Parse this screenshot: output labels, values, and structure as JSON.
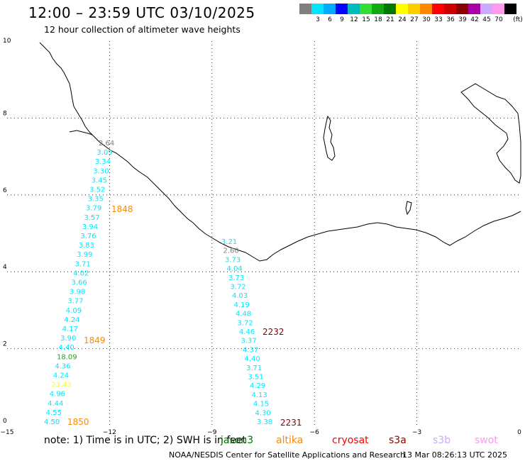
{
  "header": {
    "title": "12:00 – 23:59 UTC 03/10/2025",
    "subtitle": "12 hour collection of altimeter wave heights"
  },
  "color_scale": {
    "unit": "(ft)",
    "bins": [
      {
        "label": "",
        "color": "#808080"
      },
      {
        "label": "3",
        "color": "#00e5ff"
      },
      {
        "label": "6",
        "color": "#00aaff"
      },
      {
        "label": "9",
        "color": "#0000ff"
      },
      {
        "label": "12",
        "color": "#00bbbb"
      },
      {
        "label": "15",
        "color": "#33dd33"
      },
      {
        "label": "18",
        "color": "#11aa11"
      },
      {
        "label": "21",
        "color": "#007700"
      },
      {
        "label": "24",
        "color": "#ffff00"
      },
      {
        "label": "27",
        "color": "#ffcc00"
      },
      {
        "label": "30",
        "color": "#ff8800"
      },
      {
        "label": "33",
        "color": "#ff0000"
      },
      {
        "label": "36",
        "color": "#cc0000"
      },
      {
        "label": "39",
        "color": "#880000"
      },
      {
        "label": "42",
        "color": "#aa00aa"
      },
      {
        "label": "45",
        "color": "#ccaaff"
      },
      {
        "label": "70",
        "color": "#ff99ee"
      },
      {
        "label": "",
        "color": "#000000"
      }
    ]
  },
  "map": {
    "x_ticks": [
      "−15",
      "−12",
      "−9",
      "−6",
      "−3",
      "0"
    ],
    "y_ticks": [
      "0",
      "2",
      "4",
      "6",
      "8",
      "10"
    ],
    "track1": {
      "values": [
        "2.64",
        "3.09",
        "3.34",
        "3.30",
        "3.45",
        "3.52",
        "3.35",
        "3.79",
        "3.57",
        "3.94",
        "3.76",
        "3.83",
        "3.99",
        "3.71",
        "4.02",
        "3.66",
        "3.98",
        "3.77",
        "4.09",
        "4.24",
        "4.17",
        "3.90",
        "4.40",
        "18.09",
        "4.36",
        "4.24",
        "23.43",
        "4.96",
        "4.44",
        "4.55",
        "4.50"
      ],
      "colors": [
        "#808080",
        "#00e5ff",
        "#00e5ff",
        "#00e5ff",
        "#00e5ff",
        "#00e5ff",
        "#00e5ff",
        "#00e5ff",
        "#00e5ff",
        "#00e5ff",
        "#00e5ff",
        "#00e5ff",
        "#00e5ff",
        "#00e5ff",
        "#00e5ff",
        "#00e5ff",
        "#00e5ff",
        "#00e5ff",
        "#00e5ff",
        "#00e5ff",
        "#00e5ff",
        "#00e5ff",
        "#00e5ff",
        "#11aa11",
        "#00e5ff",
        "#00e5ff",
        "#ffff00",
        "#00e5ff",
        "#00e5ff",
        "#00e5ff",
        "#00e5ff"
      ]
    },
    "track2": {
      "values": [
        "3.21",
        "2.60",
        "3.73",
        "4.04",
        "3.73",
        "3.72",
        "4.03",
        "4.19",
        "4.48",
        "3.72",
        "4.46",
        "3.37",
        "4.37",
        "4.40",
        "3.71",
        "3.51",
        "4.29",
        "4.13",
        "4.15",
        "4.30",
        "3.38"
      ],
      "colors": [
        "#00e5ff",
        "#808080",
        "#00e5ff",
        "#00e5ff",
        "#00e5ff",
        "#00e5ff",
        "#00e5ff",
        "#00e5ff",
        "#00e5ff",
        "#00e5ff",
        "#00e5ff",
        "#00e5ff",
        "#00e5ff",
        "#00e5ff",
        "#00e5ff",
        "#00e5ff",
        "#00e5ff",
        "#00e5ff",
        "#00e5ff",
        "#00e5ff",
        "#00e5ff"
      ]
    },
    "time_labels": [
      {
        "text": "1848",
        "color": "#ff8800"
      },
      {
        "text": "1849",
        "color": "#ff8800"
      },
      {
        "text": "1850",
        "color": "#ff8800"
      },
      {
        "text": "2232",
        "color": "#880000"
      },
      {
        "text": "2231",
        "color": "#880000"
      }
    ]
  },
  "note": "note:  1) Time is in UTC;  2) SWH is in feet",
  "satellites": [
    {
      "name": "jason3",
      "color": "#007700"
    },
    {
      "name": "altika",
      "color": "#ff8800"
    },
    {
      "name": "cryosat",
      "color": "#ff0000"
    },
    {
      "name": "s3a",
      "color": "#880000"
    },
    {
      "name": "s3b",
      "color": "#ccaaff"
    },
    {
      "name": "swot",
      "color": "#ff99ee"
    }
  ],
  "footer": {
    "credit": "NOAA/NESDIS Center for Satellite Applications and Research",
    "timestamp": "13 Mar 08:26:13 UTC 2025"
  }
}
